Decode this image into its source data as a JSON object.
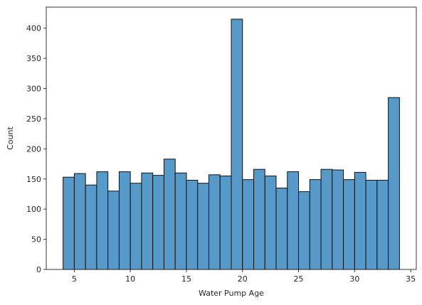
{
  "chart_data": {
    "type": "bar",
    "title": "",
    "xlabel": "Water Pump Age",
    "ylabel": "Count",
    "xlim": [
      2.5,
      35.5
    ],
    "ylim": [
      0,
      435
    ],
    "xticks": [
      5,
      10,
      15,
      20,
      25,
      30,
      35
    ],
    "yticks": [
      0,
      50,
      100,
      150,
      200,
      250,
      300,
      350,
      400
    ],
    "bin_start": 4,
    "bin_width": 1,
    "values": [
      153,
      159,
      140,
      162,
      130,
      162,
      143,
      160,
      156,
      183,
      160,
      148,
      143,
      157,
      155,
      415,
      149,
      166,
      155,
      135,
      162,
      129,
      149,
      166,
      165,
      149,
      161,
      148,
      148,
      285
    ],
    "bar_color": "#5799c8",
    "edge_color": "#111111",
    "grid": false
  }
}
